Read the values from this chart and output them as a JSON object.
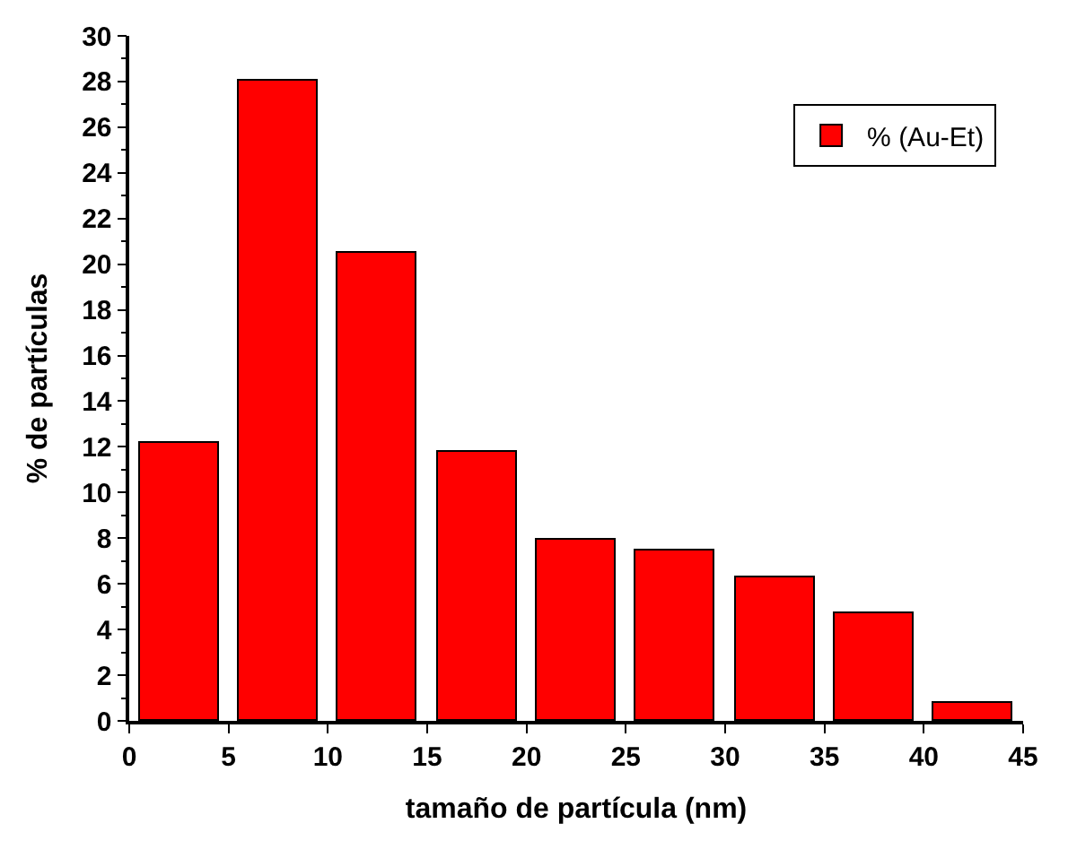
{
  "chart_data": {
    "type": "bar",
    "xlabel": "tamaño de partícula (nm)",
    "ylabel": "% de partículas",
    "x": [
      2.5,
      7.5,
      12.5,
      17.5,
      22.5,
      27.5,
      32.5,
      37.5,
      42.5
    ],
    "series": [
      {
        "name": "% (Au-Et)",
        "color": "#ff0000",
        "values": [
          12.2,
          28.0,
          20.5,
          11.8,
          7.9,
          7.5,
          6.3,
          4.7,
          0.8
        ]
      }
    ],
    "xlim": [
      0,
      45
    ],
    "xticks": [
      0,
      5,
      10,
      15,
      20,
      25,
      30,
      35,
      40,
      45
    ],
    "ylim": [
      0,
      30
    ],
    "yticks": [
      0,
      2,
      4,
      6,
      8,
      10,
      12,
      14,
      16,
      18,
      20,
      22,
      24,
      26,
      28,
      30
    ],
    "legend": "top right"
  }
}
